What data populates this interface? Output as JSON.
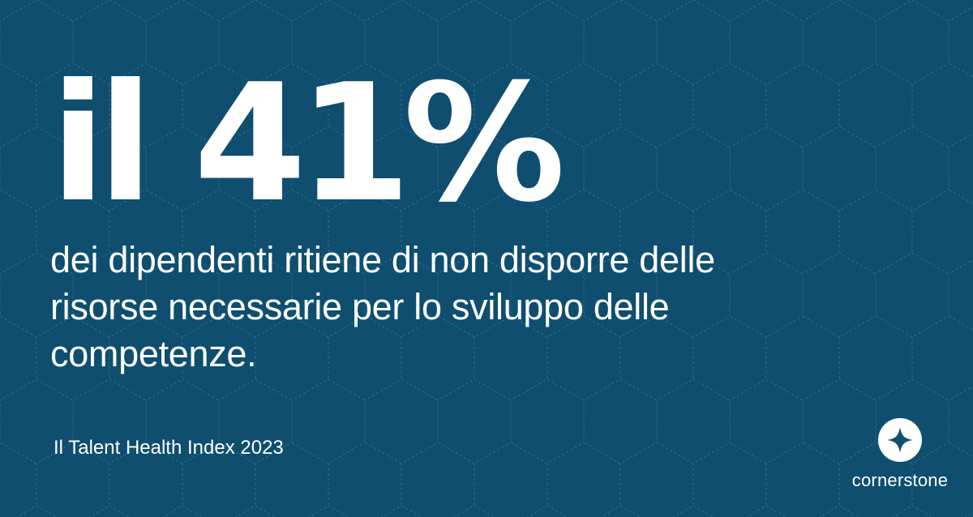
{
  "colors": {
    "background": "#0f4e6f",
    "text": "#ffffff",
    "pattern_line": "#4a86a6"
  },
  "headline": "il 41%",
  "statement": "dei dipendenti ritiene di non disporre delle risorse necessarie per lo sviluppo delle competenze.",
  "source": "Il Talent Health Index 2023",
  "brand": {
    "icon": "cornerstone-logo-icon",
    "name": "cornerstone"
  }
}
